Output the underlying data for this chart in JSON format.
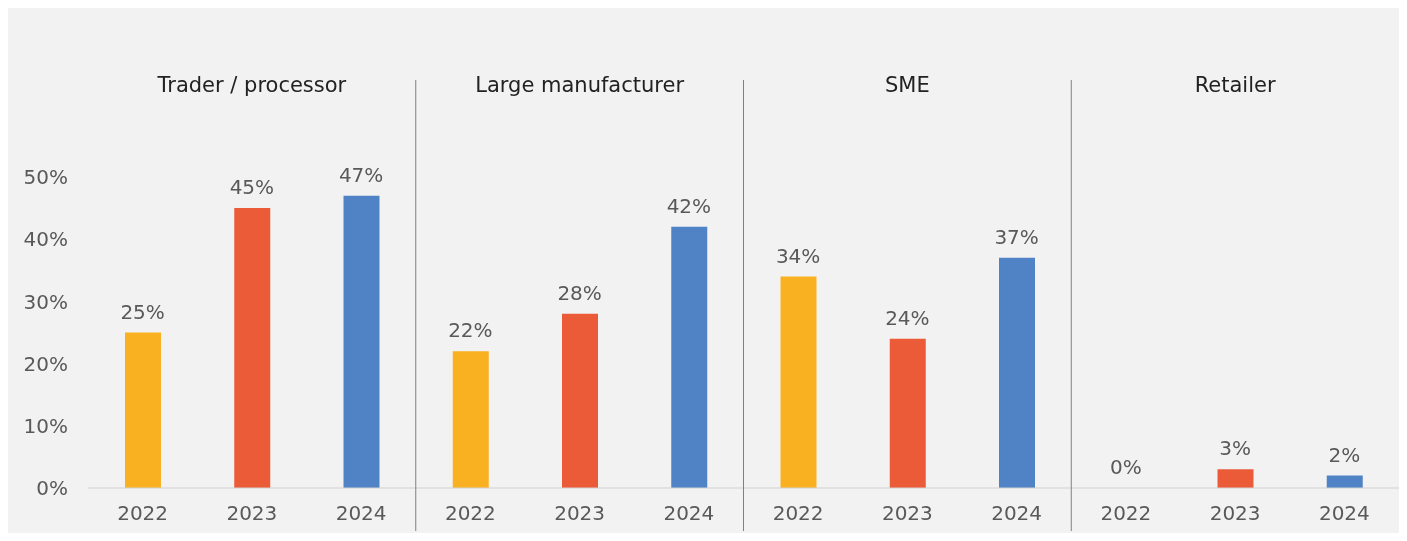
{
  "chart_data": {
    "type": "bar",
    "categories": [
      "2022",
      "2023",
      "2024",
      "2022",
      "2023",
      "2024",
      "2022",
      "2023",
      "2024",
      "2022",
      "2023",
      "2024"
    ],
    "values": [
      25,
      45,
      47,
      22,
      28,
      42,
      34,
      24,
      37,
      0,
      3,
      2
    ],
    "colors": [
      "#f9b122",
      "#eb5b37",
      "#4f83c5",
      "#f9b122",
      "#eb5b37",
      "#4f83c5",
      "#f9b122",
      "#eb5b37",
      "#4f83c5",
      "#f9b122",
      "#eb5b37",
      "#4f83c5"
    ],
    "value_labels": [
      "25%",
      "45%",
      "47%",
      "22%",
      "28%",
      "42%",
      "34%",
      "24%",
      "37%",
      "0%",
      "3%",
      "2%"
    ],
    "annotations": [
      "Trader / processor",
      "Large manufacturer",
      "SME",
      "Retailer"
    ],
    "ylim": [
      0,
      50
    ],
    "yticks": [
      {
        "value": 0,
        "label": "0%"
      },
      {
        "value": 10,
        "label": "10%"
      },
      {
        "value": 20,
        "label": "20%"
      },
      {
        "value": 30,
        "label": "30%"
      },
      {
        "value": 40,
        "label": "40%"
      },
      {
        "value": 50,
        "label": "50%"
      }
    ],
    "grid": false,
    "legend": false
  }
}
